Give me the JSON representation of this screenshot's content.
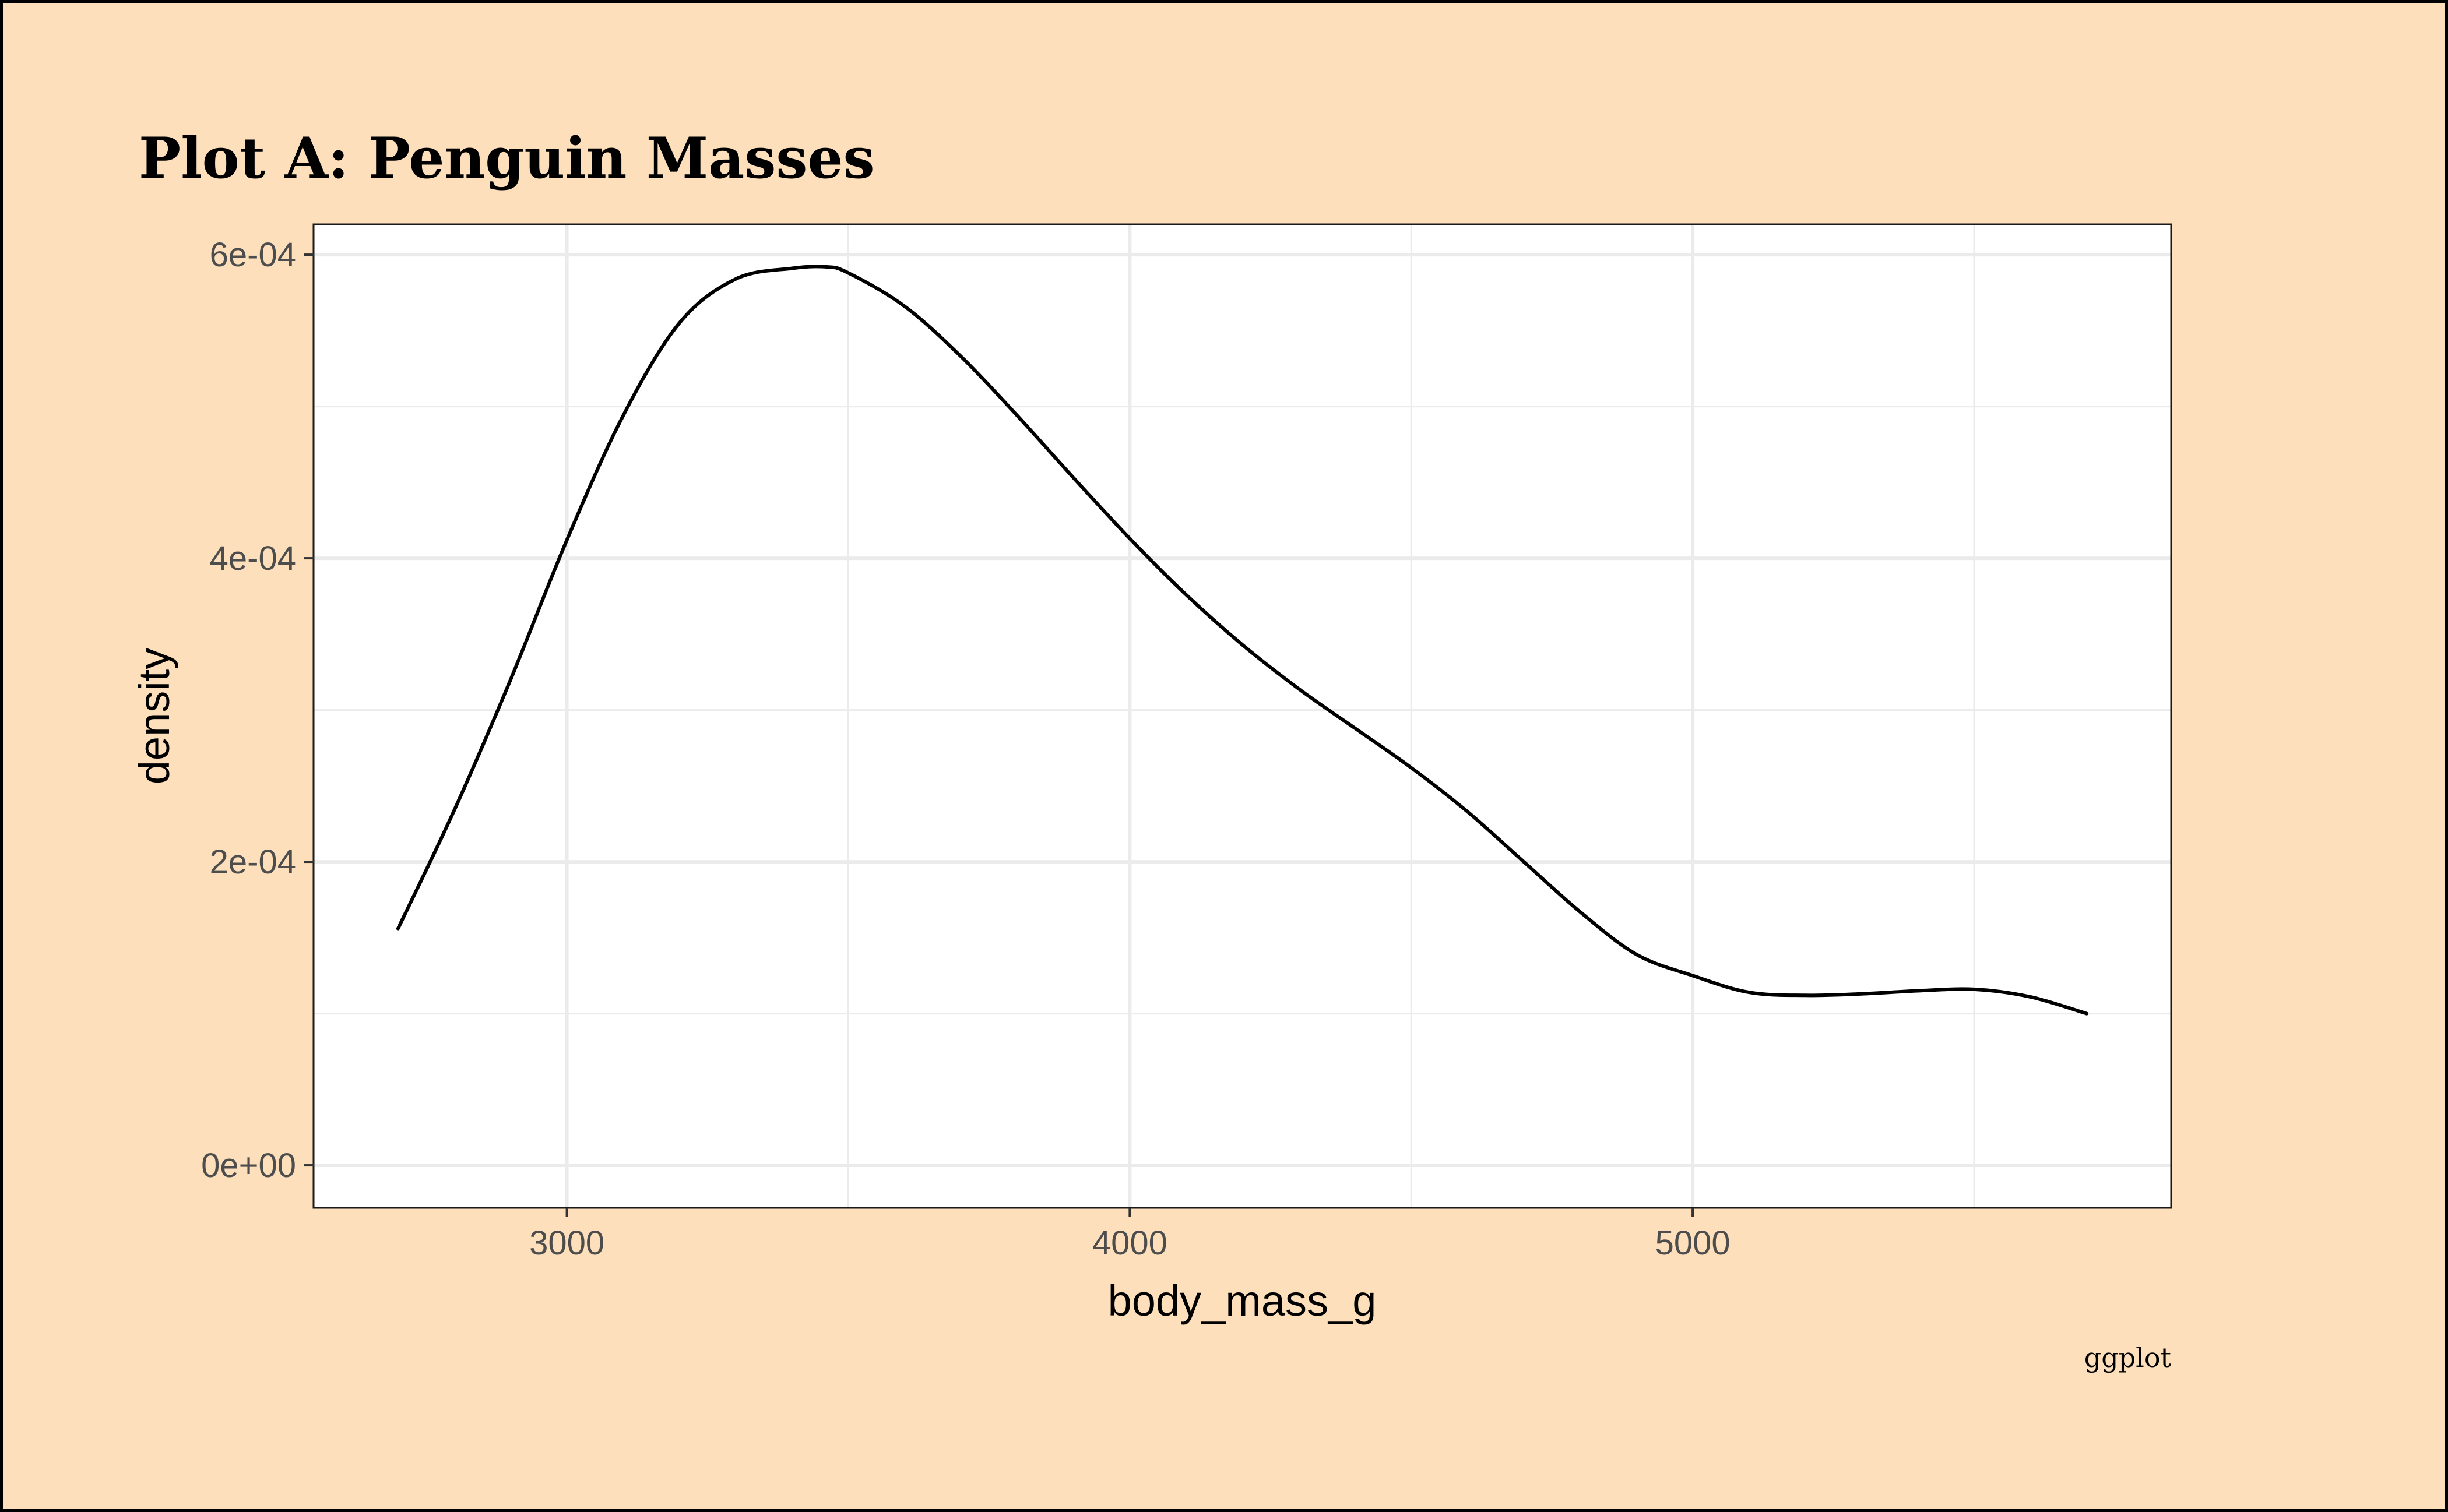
{
  "chart_data": {
    "type": "line",
    "title": "Plot A: Penguin Masses",
    "xlabel": "body_mass_g",
    "ylabel": "density",
    "caption": "ggplot",
    "xlim": [
      2550,
      5850
    ],
    "ylim": [
      -2.8e-05,
      0.00062
    ],
    "x_ticks": [
      3000,
      4000,
      5000
    ],
    "x_tick_labels": [
      "3000",
      "4000",
      "5000"
    ],
    "x_minor_ticks": [
      3500,
      4500,
      5500
    ],
    "y_ticks": [
      0,
      0.0002,
      0.0004,
      0.0006
    ],
    "y_tick_labels": [
      "0e+00",
      "2e-04",
      "4e-04",
      "6e-04"
    ],
    "y_minor_ticks": [
      0.0001,
      0.0003,
      0.0005
    ],
    "grid": true,
    "legend": "none",
    "series": [
      {
        "values_x": [
          2700,
          2800,
          2900,
          3000,
          3100,
          3200,
          3300,
          3400,
          3460,
          3500,
          3600,
          3700,
          3800,
          3900,
          4000,
          4100,
          4200,
          4300,
          4400,
          4500,
          4600,
          4700,
          4800,
          4900,
          5000,
          5100,
          5200,
          5300,
          5400,
          5500,
          5600,
          5700
        ],
        "values_y": [
          0.000156,
          0.000234,
          0.00032,
          0.000412,
          0.000494,
          0.000555,
          0.000584,
          0.000591,
          0.000592,
          0.000588,
          0.000566,
          0.000533,
          0.000494,
          0.000453,
          0.000413,
          0.000376,
          0.000343,
          0.000314,
          0.000288,
          0.000262,
          0.000233,
          0.0002,
          0.000167,
          0.000139,
          0.000125,
          0.000114,
          0.000112,
          0.000113,
          0.000115,
          0.000116,
          0.000111,
          0.0001
        ],
        "color": "#000000"
      }
    ]
  },
  "colors": {
    "background": "#fde0bb",
    "panel": "#ffffff",
    "grid": "#ebebeb",
    "line": "#000000"
  }
}
